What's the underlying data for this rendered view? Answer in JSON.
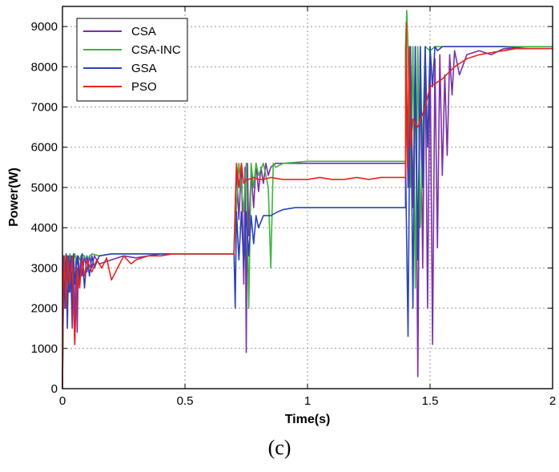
{
  "chart_data": {
    "type": "line",
    "title": "",
    "xlabel": "Time(s)",
    "ylabel": "Power(W)",
    "xlim": [
      0,
      2
    ],
    "ylim": [
      0,
      9500
    ],
    "xticks": [
      0,
      0.5,
      1,
      1.5,
      2
    ],
    "xtick_labels": [
      "0",
      "0.5",
      "1",
      "1.5",
      "2"
    ],
    "yticks": [
      0,
      1000,
      2000,
      3000,
      4000,
      5000,
      6000,
      7000,
      8000,
      9000
    ],
    "ytick_labels": [
      "0",
      "1000",
      "2000",
      "3000",
      "4000",
      "5000",
      "6000",
      "7000",
      "8000",
      "9000"
    ],
    "grid": true,
    "legend_position": "top-left",
    "caption": "(c)",
    "series": [
      {
        "name": "CSA",
        "color": "#7b2fa8",
        "x": [
          0,
          0.005,
          0.012,
          0.018,
          0.025,
          0.032,
          0.04,
          0.045,
          0.05,
          0.055,
          0.06,
          0.065,
          0.07,
          0.075,
          0.08,
          0.09,
          0.1,
          0.11,
          0.12,
          0.13,
          0.15,
          0.2,
          0.25,
          0.3,
          0.4,
          0.5,
          0.6,
          0.7,
          0.7,
          0.71,
          0.72,
          0.73,
          0.74,
          0.745,
          0.75,
          0.755,
          0.76,
          0.77,
          0.78,
          0.79,
          0.8,
          0.81,
          0.82,
          0.83,
          0.84,
          0.85,
          0.87,
          0.9,
          1.0,
          1.2,
          1.4,
          1.4,
          1.41,
          1.42,
          1.43,
          1.44,
          1.45,
          1.46,
          1.47,
          1.48,
          1.49,
          1.5,
          1.51,
          1.52,
          1.53,
          1.54,
          1.55,
          1.56,
          1.57,
          1.58,
          1.59,
          1.6,
          1.62,
          1.65,
          1.7,
          1.75,
          1.8,
          1.9,
          2.0
        ],
        "values": [
          0,
          3200,
          2600,
          3300,
          2400,
          3300,
          1500,
          3300,
          1100,
          3200,
          1400,
          3300,
          2600,
          3300,
          2800,
          3300,
          2900,
          3300,
          3000,
          3300,
          3100,
          3200,
          3300,
          3250,
          3350,
          3350,
          3350,
          3350,
          3400,
          5500,
          4200,
          5600,
          2600,
          5500,
          900,
          5600,
          3800,
          5400,
          4500,
          5600,
          4900,
          5500,
          5100,
          5600,
          5300,
          5500,
          5600,
          5600,
          5600,
          5600,
          5600,
          8500,
          5000,
          8500,
          4500,
          8500,
          300,
          8500,
          3000,
          8500,
          2000,
          8500,
          1100,
          8200,
          3500,
          8300,
          5300,
          7800,
          5800,
          8300,
          7300,
          8400,
          7800,
          8300,
          8400,
          8300,
          8450,
          8450,
          8450
        ]
      },
      {
        "name": "CSA-INC",
        "color": "#3cb43c",
        "x": [
          0,
          0.005,
          0.01,
          0.015,
          0.02,
          0.03,
          0.04,
          0.05,
          0.06,
          0.08,
          0.1,
          0.12,
          0.15,
          0.2,
          0.3,
          0.4,
          0.5,
          0.6,
          0.7,
          0.7,
          0.72,
          0.74,
          0.75,
          0.76,
          0.77,
          0.78,
          0.79,
          0.8,
          0.82,
          0.84,
          0.85,
          0.86,
          0.87,
          0.9,
          1.0,
          1.2,
          1.4,
          1.4,
          1.405,
          1.41,
          1.42,
          1.43,
          1.44,
          1.45,
          1.46,
          1.48,
          1.5,
          1.52,
          1.55,
          1.6,
          1.7,
          2.0
        ],
        "values": [
          0,
          3300,
          2500,
          3350,
          2800,
          3350,
          3000,
          3350,
          3100,
          3350,
          3200,
          3350,
          3300,
          3350,
          3350,
          3350,
          3350,
          3350,
          3350,
          3400,
          5600,
          4400,
          5600,
          2000,
          5600,
          5000,
          5600,
          5300,
          5600,
          5000,
          3000,
          5600,
          5500,
          5600,
          5650,
          5650,
          5650,
          8500,
          9400,
          8500,
          5000,
          8500,
          2500,
          8500,
          4000,
          8500,
          8400,
          8500,
          8500,
          8500,
          8500,
          8500
        ]
      },
      {
        "name": "GSA",
        "color": "#2a43b5",
        "x": [
          0,
          0.005,
          0.01,
          0.015,
          0.02,
          0.025,
          0.03,
          0.035,
          0.04,
          0.045,
          0.05,
          0.06,
          0.07,
          0.08,
          0.09,
          0.1,
          0.11,
          0.12,
          0.13,
          0.15,
          0.2,
          0.3,
          0.4,
          0.5,
          0.6,
          0.7,
          0.7,
          0.705,
          0.71,
          0.72,
          0.73,
          0.74,
          0.75,
          0.76,
          0.77,
          0.78,
          0.79,
          0.8,
          0.82,
          0.85,
          0.88,
          0.9,
          0.95,
          1.0,
          1.2,
          1.4,
          1.4,
          1.41,
          1.42,
          1.43,
          1.44,
          1.45,
          1.46,
          1.47,
          1.48,
          1.49,
          1.5,
          1.51,
          1.52,
          1.53,
          1.55,
          1.6,
          1.7,
          1.8,
          1.9,
          2.0
        ],
        "values": [
          0,
          3300,
          2000,
          3350,
          1500,
          3300,
          2400,
          3300,
          2000,
          3350,
          2600,
          3300,
          2700,
          3350,
          2500,
          3300,
          2800,
          3300,
          3000,
          3300,
          3350,
          3350,
          3350,
          3350,
          3350,
          3350,
          3400,
          2000,
          4400,
          3200,
          4400,
          3000,
          4400,
          3300,
          4300,
          3600,
          4300,
          4000,
          4300,
          4300,
          4400,
          4450,
          4500,
          4500,
          4500,
          4500,
          5600,
          1300,
          8500,
          2000,
          8500,
          3200,
          8500,
          5000,
          8500,
          6000,
          8500,
          7500,
          8500,
          8400,
          8500,
          8500,
          8500,
          8500,
          8450,
          8450
        ]
      },
      {
        "name": "PSO",
        "color": "#e8251b",
        "x": [
          0,
          0.003,
          0.008,
          0.015,
          0.02,
          0.03,
          0.04,
          0.05,
          0.06,
          0.07,
          0.08,
          0.09,
          0.1,
          0.12,
          0.14,
          0.16,
          0.18,
          0.2,
          0.25,
          0.28,
          0.3,
          0.35,
          0.4,
          0.45,
          0.5,
          0.55,
          0.6,
          0.65,
          0.7,
          0.7,
          0.705,
          0.71,
          0.72,
          0.73,
          0.74,
          0.75,
          0.76,
          0.78,
          0.8,
          0.82,
          0.85,
          0.9,
          0.95,
          1.0,
          1.05,
          1.1,
          1.15,
          1.2,
          1.25,
          1.3,
          1.35,
          1.4,
          1.4,
          1.403,
          1.408,
          1.415,
          1.42,
          1.43,
          1.45,
          1.48,
          1.5,
          1.55,
          1.6,
          1.65,
          1.7,
          1.75,
          1.8,
          1.85,
          2.0
        ],
        "values": [
          0,
          2500,
          3300,
          2000,
          3300,
          2600,
          3300,
          1100,
          3000,
          2500,
          3200,
          2800,
          3200,
          2900,
          3200,
          3000,
          3250,
          2700,
          3300,
          3100,
          3200,
          3300,
          3300,
          3350,
          3350,
          3350,
          3350,
          3350,
          3350,
          3400,
          4600,
          5600,
          5000,
          5600,
          5100,
          5200,
          5200,
          5250,
          5200,
          5200,
          5250,
          5200,
          5200,
          5200,
          5250,
          5200,
          5200,
          5250,
          5200,
          5250,
          5250,
          5250,
          5300,
          9100,
          5500,
          8500,
          6000,
          6700,
          6500,
          7000,
          7500,
          7700,
          8000,
          8200,
          8300,
          8350,
          8400,
          8450,
          8450
        ]
      }
    ]
  }
}
